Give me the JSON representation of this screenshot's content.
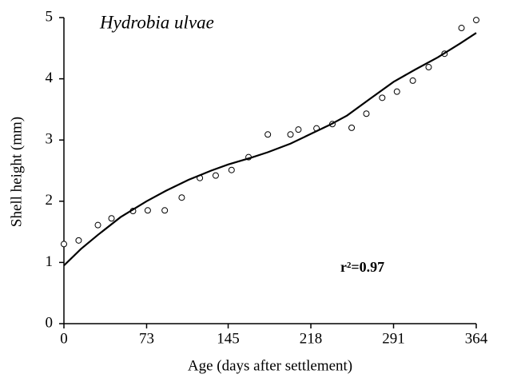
{
  "chart_data": {
    "type": "scatter",
    "annotations": [
      "Hydrobia ulvae",
      "r²=0.97"
    ],
    "xlabel": "Age (days after settlement)",
    "ylabel": "Shell height (mm)",
    "xlim": [
      0,
      364
    ],
    "xticks": [
      0,
      73,
      145,
      218,
      291,
      364
    ],
    "ylim": [
      0,
      5
    ],
    "yticks": [
      0,
      1,
      2,
      3,
      4,
      5
    ],
    "series": [
      {
        "style": "markers",
        "color": "#000000",
        "x": [
          0,
          13,
          30,
          42,
          61,
          74,
          89,
          104,
          120,
          134,
          148,
          163,
          180,
          200,
          207,
          223,
          237,
          254,
          267,
          281,
          294,
          308,
          322,
          336,
          351,
          364
        ],
        "values": [
          1.3,
          1.36,
          1.61,
          1.72,
          1.84,
          1.85,
          1.85,
          2.06,
          2.38,
          2.42,
          2.51,
          2.72,
          3.09,
          3.09,
          3.17,
          3.19,
          3.26,
          3.2,
          3.43,
          3.69,
          3.79,
          3.97,
          4.19,
          4.41,
          4.83,
          4.96
        ]
      },
      {
        "style": "line",
        "color": "#000000",
        "x": [
          0,
          15,
          30,
          50,
          73,
          90,
          110,
          130,
          145,
          165,
          180,
          200,
          218,
          235,
          250,
          270,
          291,
          310,
          330,
          350,
          364
        ],
        "values": [
          0.95,
          1.22,
          1.45,
          1.74,
          2.0,
          2.17,
          2.35,
          2.5,
          2.6,
          2.71,
          2.8,
          2.94,
          3.1,
          3.25,
          3.4,
          3.67,
          3.95,
          4.15,
          4.35,
          4.58,
          4.75
        ]
      }
    ]
  }
}
